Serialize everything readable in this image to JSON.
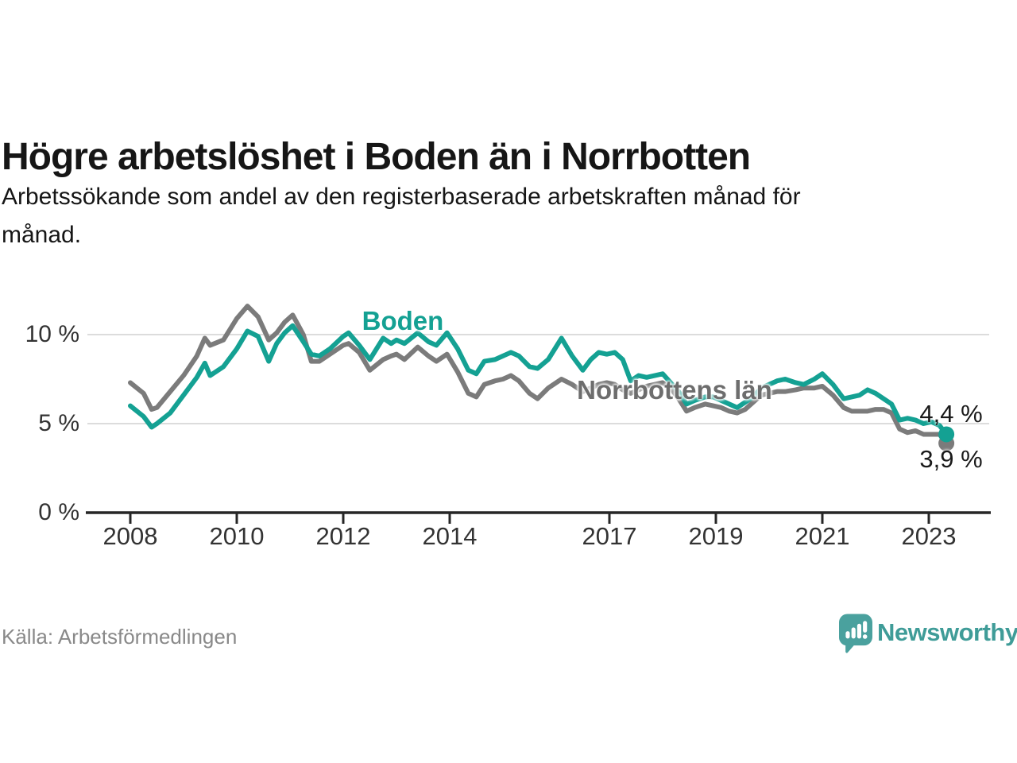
{
  "title": "Högre arbetslöshet i Boden än i Norrbotten",
  "subtitle": "Arbetssökande som andel av den registerbaserade arbetskraften månad för månad.",
  "subtitle_lines": [
    "Arbetssökande som andel av den registerbaserade arbetskraften månad för",
    "månad."
  ],
  "source": "Källa: Arbetsförmedlingen",
  "brand": {
    "name": "Newsworthy",
    "text_color": "#3f9c98",
    "icon_color": "#4aa19e"
  },
  "colors": {
    "boden": "#14a193",
    "norrbotten": "#7b7b7b",
    "grid": "#dcdcdc",
    "axis": "#262626",
    "tick_text": "#333333",
    "title_text": "#161616",
    "source_text": "#898989"
  },
  "chart_data": {
    "type": "line",
    "title": "Högre arbetslöshet i Boden än i Norrbotten",
    "subtitle": "Arbetssökande som andel av den registerbaserade arbetskraften månad för månad.",
    "unit": "%",
    "grid": "horizontal",
    "legend_position": "inline-labels",
    "xticks": [
      2008,
      2010,
      2012,
      2014,
      2017,
      2019,
      2021,
      2023
    ],
    "yticks": [
      "0 %",
      "5 %",
      "10 %"
    ],
    "ytick_values": [
      0,
      5,
      10
    ],
    "ylim": [
      0,
      12.2
    ],
    "xlim": [
      2007.3,
      2024.1
    ],
    "x": [
      2008.0,
      2008.25,
      2008.4,
      2008.5,
      2008.75,
      2009.0,
      2009.25,
      2009.4,
      2009.5,
      2009.75,
      2010.0,
      2010.2,
      2010.4,
      2010.6,
      2010.75,
      2010.9,
      2011.05,
      2011.25,
      2011.4,
      2011.55,
      2011.75,
      2012.0,
      2012.1,
      2012.3,
      2012.5,
      2012.75,
      2012.9,
      2013.0,
      2013.15,
      2013.4,
      2013.6,
      2013.75,
      2013.95,
      2014.15,
      2014.35,
      2014.5,
      2014.65,
      2014.85,
      2015.0,
      2015.15,
      2015.3,
      2015.5,
      2015.65,
      2015.85,
      2016.1,
      2016.3,
      2016.5,
      2016.65,
      2016.8,
      2016.95,
      2017.1,
      2017.25,
      2017.4,
      2017.55,
      2017.7,
      2017.85,
      2018.0,
      2018.15,
      2018.3,
      2018.45,
      2018.6,
      2018.8,
      2018.95,
      2019.1,
      2019.25,
      2019.4,
      2019.55,
      2019.7,
      2019.85,
      2020.0,
      2020.15,
      2020.3,
      2020.5,
      2020.65,
      2020.85,
      2021.0,
      2021.2,
      2021.4,
      2021.55,
      2021.7,
      2021.85,
      2022.0,
      2022.15,
      2022.3,
      2022.45,
      2022.6,
      2022.75,
      2022.9,
      2023.05,
      2023.2,
      2023.33
    ],
    "series": [
      {
        "name": "Boden",
        "color": "#14a193",
        "end_label": "4,4 %",
        "end_value": 4.4,
        "values": [
          6.0,
          5.4,
          4.8,
          5.0,
          5.6,
          6.6,
          7.6,
          8.4,
          7.7,
          8.2,
          9.2,
          10.2,
          9.9,
          8.5,
          9.5,
          10.1,
          10.5,
          9.6,
          8.9,
          8.8,
          9.2,
          9.9,
          10.1,
          9.4,
          8.6,
          9.8,
          9.5,
          9.7,
          9.5,
          10.1,
          9.6,
          9.4,
          10.1,
          9.2,
          8.0,
          7.8,
          8.5,
          8.6,
          8.8,
          9.0,
          8.8,
          8.2,
          8.1,
          8.6,
          9.8,
          8.8,
          8.0,
          8.6,
          9.0,
          8.9,
          9.0,
          8.6,
          7.4,
          7.7,
          7.6,
          7.7,
          7.8,
          7.3,
          6.8,
          6.1,
          6.3,
          6.5,
          6.5,
          6.3,
          6.1,
          5.9,
          6.2,
          6.5,
          7.0,
          7.2,
          7.4,
          7.5,
          7.3,
          7.2,
          7.5,
          7.8,
          7.2,
          6.4,
          6.5,
          6.6,
          6.9,
          6.7,
          6.4,
          6.1,
          5.2,
          5.3,
          5.2,
          5.0,
          5.1,
          4.9,
          4.4
        ]
      },
      {
        "name": "Norrbottens län",
        "color": "#7b7b7b",
        "end_label": "3,9 %",
        "end_value": 3.9,
        "values": [
          7.3,
          6.7,
          5.8,
          5.9,
          6.8,
          7.7,
          8.8,
          9.8,
          9.4,
          9.7,
          10.9,
          11.6,
          11.0,
          9.7,
          10.1,
          10.7,
          11.1,
          10.0,
          8.5,
          8.5,
          8.9,
          9.4,
          9.5,
          9.0,
          8.0,
          8.6,
          8.8,
          8.9,
          8.6,
          9.3,
          8.8,
          8.5,
          8.9,
          7.9,
          6.7,
          6.5,
          7.2,
          7.4,
          7.5,
          7.7,
          7.4,
          6.7,
          6.4,
          7.0,
          7.5,
          7.2,
          6.8,
          7.0,
          7.2,
          7.3,
          7.2,
          6.9,
          6.7,
          6.9,
          7.1,
          7.2,
          7.3,
          7.0,
          6.4,
          5.7,
          5.9,
          6.1,
          6.0,
          5.9,
          5.7,
          5.6,
          5.8,
          6.2,
          6.6,
          6.7,
          6.8,
          6.8,
          6.9,
          7.0,
          7.0,
          7.1,
          6.6,
          5.9,
          5.7,
          5.7,
          5.7,
          5.8,
          5.8,
          5.6,
          4.7,
          4.5,
          4.6,
          4.4,
          4.4,
          4.4,
          3.9
        ]
      }
    ]
  }
}
